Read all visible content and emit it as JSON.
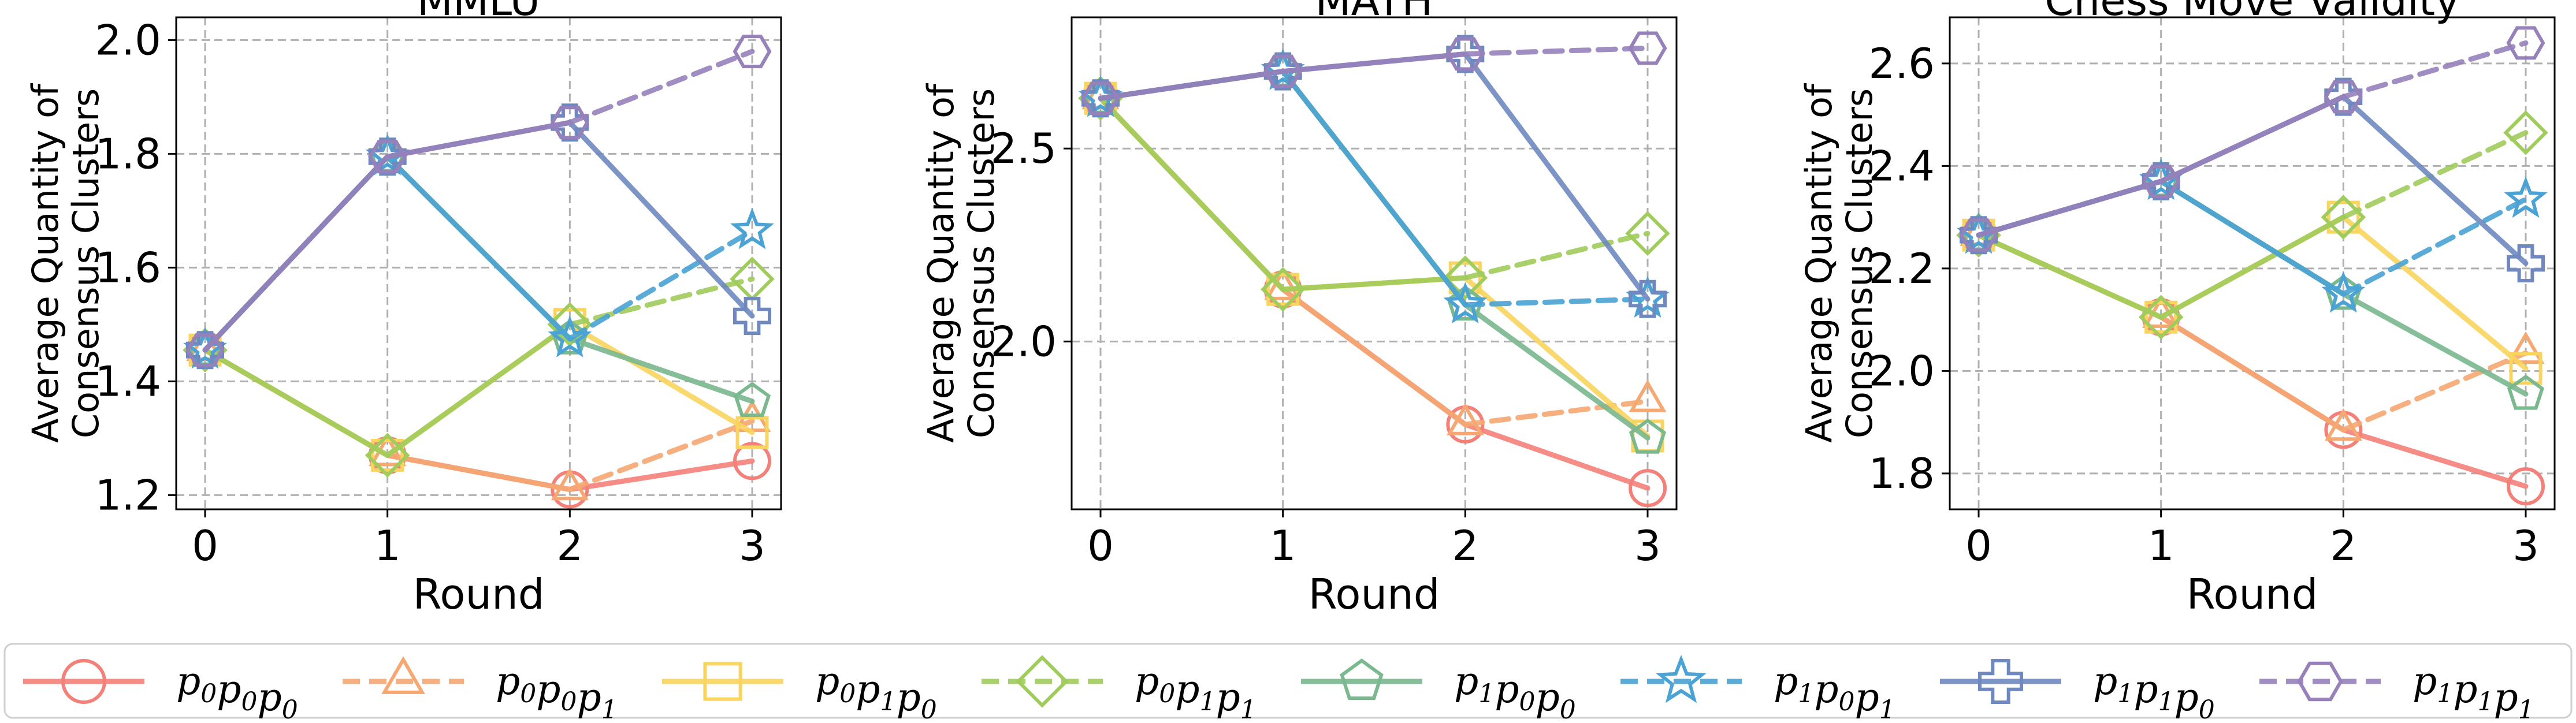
{
  "series_styles": [
    {
      "color": "#f4807a",
      "dash": false,
      "marker": "circle"
    },
    {
      "color": "#f6a873",
      "dash": true,
      "marker": "triangle"
    },
    {
      "color": "#f9d45e",
      "dash": false,
      "marker": "square"
    },
    {
      "color": "#a0cc5c",
      "dash": true,
      "marker": "diamond"
    },
    {
      "color": "#7ab88e",
      "dash": false,
      "marker": "pentagon"
    },
    {
      "color": "#4aa3d4",
      "dash": true,
      "marker": "star"
    },
    {
      "color": "#6f89c0",
      "dash": false,
      "marker": "plus"
    },
    {
      "color": "#9681bb",
      "dash": true,
      "marker": "hexagon"
    }
  ],
  "legend": [
    [
      "0",
      "0",
      "0"
    ],
    [
      "0",
      "0",
      "1"
    ],
    [
      "0",
      "1",
      "0"
    ],
    [
      "0",
      "1",
      "1"
    ],
    [
      "1",
      "0",
      "0"
    ],
    [
      "1",
      "0",
      "1"
    ],
    [
      "1",
      "1",
      "0"
    ],
    [
      "1",
      "1",
      "1"
    ]
  ],
  "chart_data": [
    {
      "type": "line",
      "title": "MMLU",
      "xlabel": "Round",
      "ylabel": [
        "Average Quantity of",
        "Consensus Clusters"
      ],
      "x": [
        0,
        1,
        2,
        3
      ],
      "xticks": [
        "0",
        "1",
        "2",
        "3"
      ],
      "ylim": [
        1.175,
        2.04
      ],
      "yticks": [
        1.2,
        1.4,
        1.6,
        1.8,
        2.0
      ],
      "ytick_labels": [
        "1.2",
        "1.4",
        "1.6",
        "1.8",
        "2.0"
      ],
      "grid": true,
      "series": [
        {
          "values": [
            1.455,
            1.27,
            1.21,
            1.26
          ]
        },
        {
          "values": [
            1.455,
            1.27,
            1.21,
            1.33
          ]
        },
        {
          "values": [
            1.455,
            1.27,
            1.5,
            1.31
          ]
        },
        {
          "values": [
            1.455,
            1.27,
            1.5,
            1.58
          ]
        },
        {
          "values": [
            1.455,
            1.795,
            1.475,
            1.365
          ]
        },
        {
          "values": [
            1.455,
            1.795,
            1.475,
            1.665
          ]
        },
        {
          "values": [
            1.455,
            1.795,
            1.855,
            1.515
          ]
        },
        {
          "values": [
            1.455,
            1.795,
            1.855,
            1.98
          ]
        }
      ]
    },
    {
      "type": "line",
      "title": "MATH",
      "xlabel": "Round",
      "ylabel": [
        "Average Quantity of",
        "Consensus Clusters"
      ],
      "x": [
        0,
        1,
        2,
        3
      ],
      "xticks": [
        "0",
        "1",
        "2",
        "3"
      ],
      "ylim": [
        1.565,
        2.84
      ],
      "yticks": [
        2.0,
        2.5
      ],
      "ytick_labels": [
        "2.0",
        "2.5"
      ],
      "grid": true,
      "series": [
        {
          "values": [
            2.63,
            2.135,
            1.785,
            1.62
          ]
        },
        {
          "values": [
            2.63,
            2.135,
            1.785,
            1.845
          ]
        },
        {
          "values": [
            2.63,
            2.135,
            2.165,
            1.755
          ]
        },
        {
          "values": [
            2.63,
            2.135,
            2.165,
            2.28
          ]
        },
        {
          "values": [
            2.63,
            2.7,
            2.095,
            1.75
          ]
        },
        {
          "values": [
            2.63,
            2.7,
            2.095,
            2.11
          ]
        },
        {
          "values": [
            2.63,
            2.7,
            2.745,
            2.11
          ]
        },
        {
          "values": [
            2.63,
            2.7,
            2.745,
            2.76
          ]
        }
      ]
    },
    {
      "type": "line",
      "title": "Chess Move Validity",
      "xlabel": "Round",
      "ylabel": [
        "Average Quantity of",
        "Consensus Clusters"
      ],
      "x": [
        0,
        1,
        2,
        3
      ],
      "xticks": [
        "0",
        "1",
        "2",
        "3"
      ],
      "ylim": [
        1.73,
        2.69
      ],
      "yticks": [
        1.8,
        2.0,
        2.2,
        2.4,
        2.6
      ],
      "ytick_labels": [
        "1.8",
        "2.0",
        "2.2",
        "2.4",
        "2.6"
      ],
      "grid": true,
      "series": [
        {
          "values": [
            2.265,
            2.105,
            1.885,
            1.775
          ]
        },
        {
          "values": [
            2.265,
            2.105,
            1.885,
            2.035
          ]
        },
        {
          "values": [
            2.265,
            2.105,
            2.3,
            2.005
          ]
        },
        {
          "values": [
            2.265,
            2.105,
            2.3,
            2.465
          ]
        },
        {
          "values": [
            2.265,
            2.37,
            2.15,
            1.955
          ]
        },
        {
          "values": [
            2.265,
            2.37,
            2.15,
            2.335
          ]
        },
        {
          "values": [
            2.265,
            2.37,
            2.535,
            2.21
          ]
        },
        {
          "values": [
            2.265,
            2.37,
            2.535,
            2.64
          ]
        }
      ]
    }
  ]
}
